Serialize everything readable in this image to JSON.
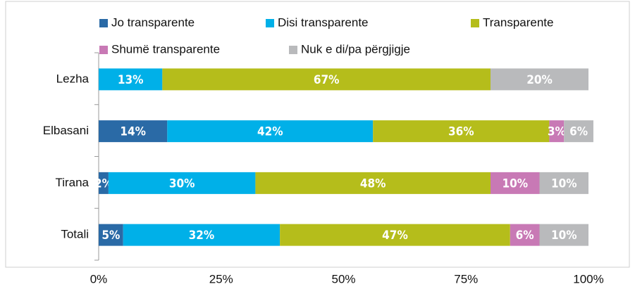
{
  "chart_data": {
    "type": "stacked-bar-horizontal",
    "categories": [
      "Lezha",
      "Elbasani",
      "Tirana",
      "Totali"
    ],
    "series": [
      {
        "name": "Jo transparente",
        "color": "#2a6aa6",
        "values": [
          null,
          14,
          2,
          5
        ],
        "value_labels": [
          null,
          "14%",
          "2%",
          "5%"
        ]
      },
      {
        "name": "Disi transparente",
        "color": "#00b0e8",
        "values": [
          13,
          42,
          30,
          32
        ],
        "value_labels": [
          "13%",
          "42%",
          "30%",
          "32%"
        ]
      },
      {
        "name": "Transparente",
        "color": "#b5bd1b",
        "values": [
          67,
          36,
          48,
          47
        ],
        "value_labels": [
          "67%",
          "36%",
          "48%",
          "47%"
        ]
      },
      {
        "name": "Shumë transparente",
        "color": "#c879b5",
        "values": [
          null,
          3,
          10,
          6
        ],
        "value_labels": [
          null,
          "3%",
          "10%",
          "6%"
        ]
      },
      {
        "name": "Nuk e di/pa përgjigje",
        "color": "#b9babc",
        "values": [
          20,
          6,
          10,
          10
        ],
        "value_labels": [
          "20%",
          "6%",
          "10%",
          "10%"
        ]
      }
    ],
    "xlim": [
      0,
      100
    ],
    "xticks": [
      {
        "value": 0,
        "label": "0%"
      },
      {
        "value": 25,
        "label": "25%"
      },
      {
        "value": 50,
        "label": "50%"
      },
      {
        "value": 75,
        "label": "75%"
      },
      {
        "value": 100,
        "label": "100%"
      }
    ],
    "grid": false,
    "legend": "top"
  }
}
